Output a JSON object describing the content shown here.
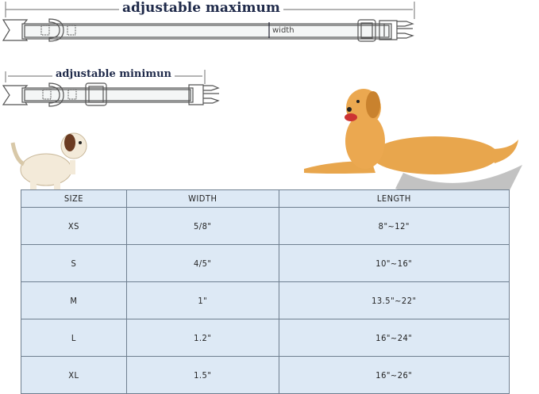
{
  "diagram": {
    "max_label": "adjustable maximum",
    "min_label": "adjustable minimun",
    "width_label": "width"
  },
  "colors": {
    "table_bg": "#dde9f5",
    "label_text": "#1f2a4a"
  },
  "table": {
    "headers": [
      "SIZE",
      "WIDTH",
      "LENGTH"
    ],
    "rows": [
      [
        "XS",
        "5/8\"",
        "8\"~12\""
      ],
      [
        "S",
        "4/5\"",
        "10\"~16\""
      ],
      [
        "M",
        "1\"",
        "13.5\"~22\""
      ],
      [
        "L",
        "1.2\"",
        "16\"~24\""
      ],
      [
        "XL",
        "1.5\"",
        "16\"~26\""
      ]
    ]
  }
}
